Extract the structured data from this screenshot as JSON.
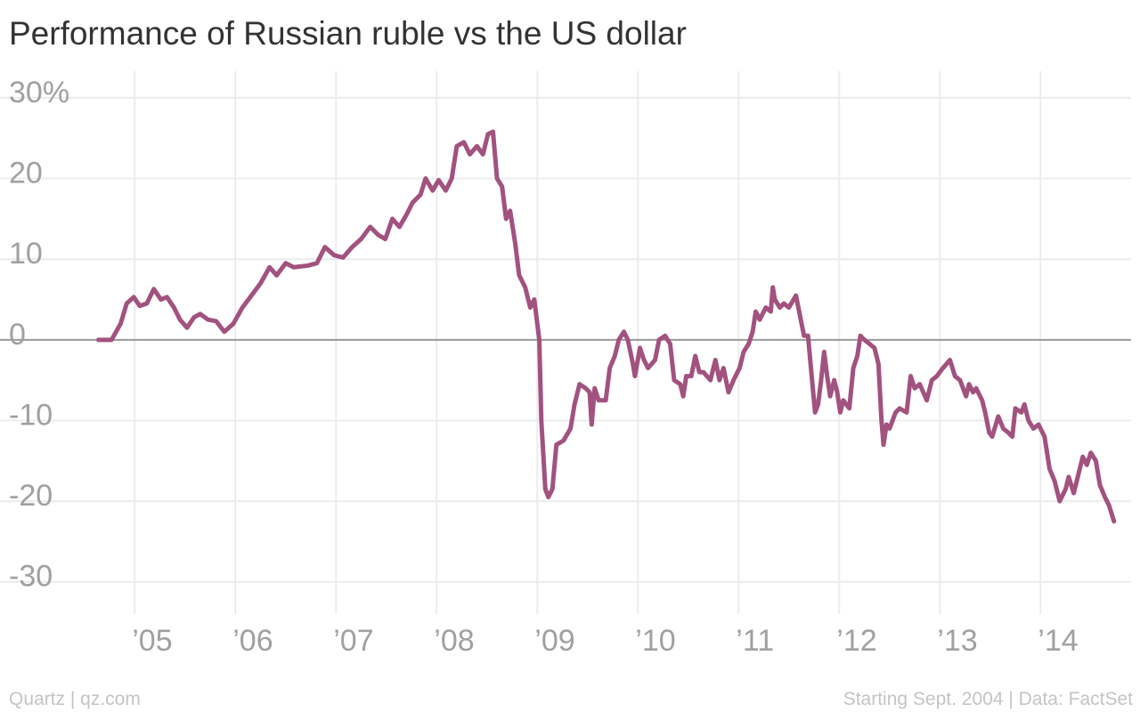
{
  "chart_data": {
    "type": "line",
    "title": "Performance of Russian ruble vs the US dollar",
    "source": "Quartz | qz.com",
    "note": "Starting Sept. 2004 | Data: FactSet",
    "color": "#a2527f",
    "grid": true,
    "xlim": [
      2003.75,
      2014.9
    ],
    "ylim": [
      -34,
      33.3
    ],
    "xticks": [
      {
        "value": 2005,
        "label": "’05"
      },
      {
        "value": 2006,
        "label": "’06"
      },
      {
        "value": 2007,
        "label": "’07"
      },
      {
        "value": 2008,
        "label": "’08"
      },
      {
        "value": 2009,
        "label": "’09"
      },
      {
        "value": 2010,
        "label": "’10"
      },
      {
        "value": 2011,
        "label": "’11"
      },
      {
        "value": 2012,
        "label": "’12"
      },
      {
        "value": 2013,
        "label": "’13"
      },
      {
        "value": 2014,
        "label": "’14"
      }
    ],
    "yticks": [
      -30,
      -20,
      -10,
      0,
      10,
      20,
      {
        "value": 30,
        "label": "30%"
      }
    ],
    "x": [
      2004.64,
      2004.77,
      2004.86,
      2004.92,
      2004.99,
      2005.05,
      2005.12,
      2005.19,
      2005.26,
      2005.32,
      2005.39,
      2005.45,
      2005.52,
      2005.59,
      2005.65,
      2005.73,
      2005.81,
      2005.89,
      2005.98,
      2006.07,
      2006.16,
      2006.25,
      2006.34,
      2006.41,
      2006.5,
      2006.58,
      2006.72,
      2006.81,
      2006.89,
      2006.98,
      2007.07,
      2007.16,
      2007.25,
      2007.34,
      2007.42,
      2007.49,
      2007.56,
      2007.63,
      2007.7,
      2007.76,
      2007.84,
      2007.89,
      2007.96,
      2008.02,
      2008.09,
      2008.15,
      2008.2,
      2008.27,
      2008.33,
      2008.4,
      2008.46,
      2008.51,
      2008.56,
      2008.6,
      2008.65,
      2008.69,
      2008.73,
      2008.78,
      2008.82,
      2008.88,
      2008.93,
      2008.97,
      2009.02,
      2009.04,
      2009.08,
      2009.11,
      2009.15,
      2009.19,
      2009.26,
      2009.33,
      2009.37,
      2009.42,
      2009.48,
      2009.52,
      2009.54,
      2009.57,
      2009.61,
      2009.68,
      2009.72,
      2009.77,
      2009.81,
      2009.86,
      2009.9,
      2009.95,
      2009.97,
      2010.02,
      2010.06,
      2010.1,
      2010.17,
      2010.21,
      2010.27,
      2010.32,
      2010.36,
      2010.42,
      2010.45,
      2010.48,
      2010.53,
      2010.57,
      2010.61,
      2010.65,
      2010.72,
      2010.77,
      2010.81,
      2010.85,
      2010.9,
      2010.95,
      2011.01,
      2011.05,
      2011.1,
      2011.14,
      2011.17,
      2011.21,
      2011.27,
      2011.32,
      2011.34,
      2011.36,
      2011.41,
      2011.45,
      2011.5,
      2011.57,
      2011.61,
      2011.65,
      2011.69,
      2011.73,
      2011.76,
      2011.79,
      2011.82,
      2011.85,
      2011.88,
      2011.91,
      2011.95,
      2011.98,
      2012.01,
      2012.04,
      2012.1,
      2012.14,
      2012.18,
      2012.21,
      2012.25,
      2012.3,
      2012.35,
      2012.39,
      2012.42,
      2012.44,
      2012.47,
      2012.5,
      2012.56,
      2012.6,
      2012.67,
      2012.71,
      2012.75,
      2012.8,
      2012.87,
      2012.92,
      2012.97,
      2013.03,
      2013.1,
      2013.15,
      2013.2,
      2013.26,
      2013.29,
      2013.33,
      2013.36,
      2013.42,
      2013.45,
      2013.49,
      2013.52,
      2013.58,
      2013.63,
      2013.68,
      2013.72,
      2013.75,
      2013.81,
      2013.84,
      2013.88,
      2013.93,
      2013.98,
      2014.04,
      2014.09,
      2014.14,
      2014.19,
      2014.25,
      2014.28,
      2014.33,
      2014.37,
      2014.42,
      2014.46,
      2014.5,
      2014.55,
      2014.59,
      2014.64,
      2014.68,
      2014.73
    ],
    "values": [
      0,
      0,
      2,
      4.5,
      5.3,
      4.2,
      4.5,
      6.3,
      5,
      5.3,
      4,
      2.5,
      1.5,
      2.8,
      3.2,
      2.5,
      2.3,
      1,
      2,
      4,
      5.5,
      7,
      9,
      8,
      9.5,
      9,
      9.2,
      9.5,
      11.5,
      10.5,
      10.2,
      11.5,
      12.5,
      14,
      13,
      12.5,
      15,
      14,
      15.5,
      17,
      18,
      20,
      18.5,
      19.8,
      18.5,
      20,
      24,
      24.5,
      23,
      24,
      23,
      25.5,
      25.8,
      20,
      19,
      15,
      16,
      12,
      8,
      6.5,
      4,
      5,
      0,
      -10,
      -18.5,
      -19.5,
      -18.5,
      -13,
      -12.5,
      -11,
      -8,
      -5.5,
      -6,
      -6.5,
      -10.5,
      -6,
      -7.5,
      -7.5,
      -3.5,
      -2,
      0,
      1,
      0,
      -3,
      -4.5,
      -1,
      -2.5,
      -3.5,
      -2.5,
      0,
      0.5,
      -0.5,
      -5,
      -5.5,
      -7,
      -4.5,
      -4.5,
      -2,
      -4,
      -4,
      -5,
      -2.5,
      -5,
      -3.5,
      -6.5,
      -5,
      -3.5,
      -1.5,
      -0.5,
      1,
      3.5,
      2.5,
      4,
      3.5,
      6.5,
      5,
      4,
      4.5,
      4,
      5.5,
      3,
      0.5,
      0.5,
      -5,
      -9,
      -8,
      -5,
      -1.5,
      -4.5,
      -7,
      -5,
      -6.5,
      -9,
      -7.5,
      -8.5,
      -3.5,
      -2,
      0.5,
      0,
      -0.5,
      -1,
      -3,
      -10,
      -13,
      -10.5,
      -11,
      -9,
      -8.5,
      -9,
      -4.5,
      -6,
      -5.5,
      -7.5,
      -5,
      -4.5,
      -3.5,
      -2.5,
      -4.5,
      -5,
      -7,
      -5.5,
      -6.5,
      -6,
      -7.5,
      -9,
      -11.5,
      -12,
      -9.5,
      -11,
      -11.5,
      -12,
      -8.5,
      -9,
      -8,
      -10,
      -11,
      -10.5,
      -12,
      -16,
      -17.5,
      -20,
      -18.5,
      -17,
      -19,
      -17,
      -14.5,
      -15.5,
      -14,
      -15,
      -18,
      -19.5,
      -20.5,
      -22.5
    ]
  }
}
